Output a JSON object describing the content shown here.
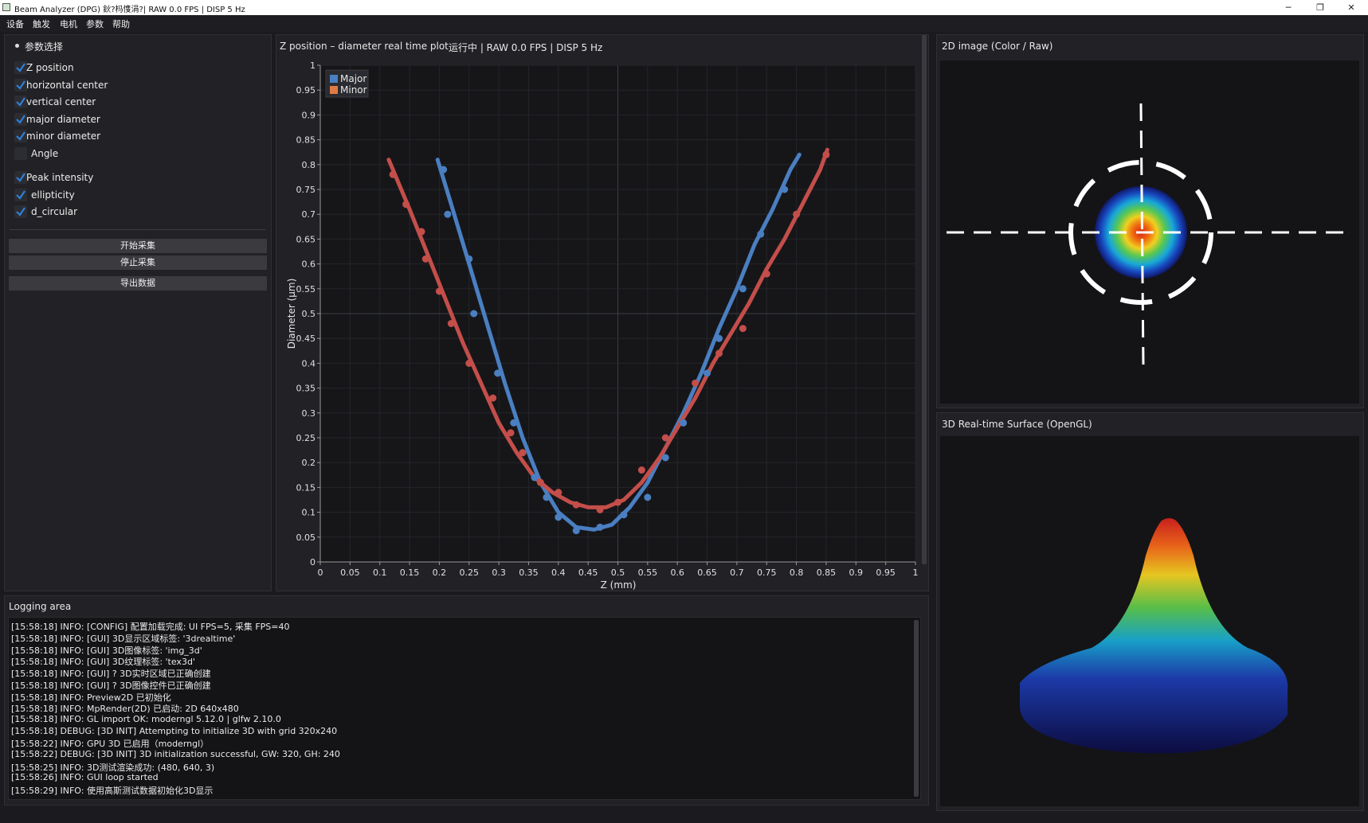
{
  "window": {
    "title": "Beam Analyzer (DPG) 鈥?杩愯涓?| RAW 0.0 FPS | DISP 5 Hz",
    "minimize": "─",
    "restore": "❐",
    "close": "✕"
  },
  "menu": [
    "设备",
    "触发",
    "电机",
    "参数",
    "帮助"
  ],
  "params": {
    "header": "参数选择",
    "items": [
      {
        "label": "Z position",
        "checked": true
      },
      {
        "label": "horizontal center",
        "checked": true
      },
      {
        "label": "vertical center",
        "checked": true
      },
      {
        "label": "major diameter",
        "checked": true
      },
      {
        "label": "minor diameter",
        "checked": true
      },
      {
        "label": "Angle",
        "checked": false
      },
      {
        "label": "Peak intensity",
        "checked": true
      },
      {
        "label": "ellipticity",
        "checked": true
      },
      {
        "label": "d_circular",
        "checked": true
      }
    ],
    "start_label": "开始采集",
    "stop_label": "停止采集",
    "export_label": "导出数据"
  },
  "plot": {
    "title": "Z position – diameter real time plot",
    "status": "运行中 | RAW 0.0 FPS | DISP 5 Hz"
  },
  "chart_data": {
    "type": "line",
    "title": "",
    "xlabel": "Z (mm)",
    "ylabel": "Diameter (μm)",
    "xlim": [
      0,
      1
    ],
    "ylim": [
      0,
      1
    ],
    "xticks": [
      "0",
      "0.05",
      "0.1",
      "0.15",
      "0.2",
      "0.25",
      "0.3",
      "0.35",
      "0.4",
      "0.45",
      "0.5",
      "0.55",
      "0.6",
      "0.65",
      "0.7",
      "0.75",
      "0.8",
      "0.85",
      "0.9",
      "0.95",
      "1"
    ],
    "yticks": [
      "0",
      "0.05",
      "0.1",
      "0.15",
      "0.2",
      "0.25",
      "0.3",
      "0.35",
      "0.4",
      "0.45",
      "0.5",
      "0.55",
      "0.6",
      "0.65",
      "0.7",
      "0.75",
      "0.8",
      "0.85",
      "0.9",
      "0.95",
      "1"
    ],
    "grid": true,
    "legend_position": "top-left",
    "series": [
      {
        "name": "Major",
        "color": "#4a7fc1",
        "points": [
          [
            0.207,
            0.79
          ],
          [
            0.214,
            0.7
          ],
          [
            0.25,
            0.61
          ],
          [
            0.258,
            0.5
          ],
          [
            0.298,
            0.38
          ],
          [
            0.325,
            0.28
          ],
          [
            0.34,
            0.22
          ],
          [
            0.36,
            0.17
          ],
          [
            0.38,
            0.13
          ],
          [
            0.4,
            0.09
          ],
          [
            0.43,
            0.063
          ],
          [
            0.47,
            0.07
          ],
          [
            0.51,
            0.095
          ],
          [
            0.55,
            0.13
          ],
          [
            0.58,
            0.21
          ],
          [
            0.61,
            0.28
          ],
          [
            0.65,
            0.38
          ],
          [
            0.67,
            0.45
          ],
          [
            0.71,
            0.55
          ],
          [
            0.74,
            0.66
          ],
          [
            0.78,
            0.75
          ]
        ],
        "curve": [
          [
            0.197,
            0.81
          ],
          [
            0.22,
            0.72
          ],
          [
            0.25,
            0.6
          ],
          [
            0.28,
            0.48
          ],
          [
            0.31,
            0.36
          ],
          [
            0.34,
            0.25
          ],
          [
            0.37,
            0.16
          ],
          [
            0.4,
            0.1
          ],
          [
            0.43,
            0.07
          ],
          [
            0.46,
            0.065
          ],
          [
            0.49,
            0.075
          ],
          [
            0.52,
            0.11
          ],
          [
            0.55,
            0.16
          ],
          [
            0.58,
            0.23
          ],
          [
            0.61,
            0.3
          ],
          [
            0.64,
            0.38
          ],
          [
            0.67,
            0.47
          ],
          [
            0.7,
            0.55
          ],
          [
            0.73,
            0.64
          ],
          [
            0.76,
            0.71
          ],
          [
            0.79,
            0.79
          ],
          [
            0.805,
            0.82
          ]
        ]
      },
      {
        "name": "Minor",
        "color": "#c44e4a",
        "points": [
          [
            0.122,
            0.78
          ],
          [
            0.144,
            0.72
          ],
          [
            0.17,
            0.665
          ],
          [
            0.177,
            0.61
          ],
          [
            0.2,
            0.545
          ],
          [
            0.22,
            0.48
          ],
          [
            0.25,
            0.4
          ],
          [
            0.29,
            0.33
          ],
          [
            0.32,
            0.26
          ],
          [
            0.34,
            0.22
          ],
          [
            0.37,
            0.16
          ],
          [
            0.4,
            0.14
          ],
          [
            0.43,
            0.115
          ],
          [
            0.47,
            0.105
          ],
          [
            0.5,
            0.12
          ],
          [
            0.54,
            0.185
          ],
          [
            0.58,
            0.25
          ],
          [
            0.63,
            0.36
          ],
          [
            0.67,
            0.42
          ],
          [
            0.71,
            0.47
          ],
          [
            0.75,
            0.58
          ],
          [
            0.8,
            0.7
          ],
          [
            0.85,
            0.82
          ]
        ],
        "curve": [
          [
            0.115,
            0.81
          ],
          [
            0.15,
            0.71
          ],
          [
            0.18,
            0.62
          ],
          [
            0.21,
            0.53
          ],
          [
            0.24,
            0.44
          ],
          [
            0.27,
            0.36
          ],
          [
            0.3,
            0.28
          ],
          [
            0.33,
            0.22
          ],
          [
            0.36,
            0.17
          ],
          [
            0.39,
            0.14
          ],
          [
            0.42,
            0.12
          ],
          [
            0.45,
            0.11
          ],
          [
            0.48,
            0.11
          ],
          [
            0.51,
            0.125
          ],
          [
            0.54,
            0.16
          ],
          [
            0.57,
            0.21
          ],
          [
            0.6,
            0.27
          ],
          [
            0.63,
            0.33
          ],
          [
            0.66,
            0.4
          ],
          [
            0.69,
            0.46
          ],
          [
            0.72,
            0.52
          ],
          [
            0.75,
            0.59
          ],
          [
            0.78,
            0.65
          ],
          [
            0.81,
            0.72
          ],
          [
            0.84,
            0.79
          ],
          [
            0.852,
            0.83
          ]
        ]
      }
    ]
  },
  "image2d": {
    "title": "2D image (Color / Raw)"
  },
  "surface3d": {
    "title": "3D Real-time Surface (OpenGL)"
  },
  "logging": {
    "title": "Logging area",
    "lines": [
      "[15:58:18] INFO: [CONFIG] 配置加载完成: UI FPS=5, 采集 FPS=40",
      "[15:58:18] INFO: [GUI] 3D显示区域标签: '3drealtime'",
      "[15:58:18] INFO: [GUI] 3D图像标签: 'img_3d'",
      "[15:58:18] INFO: [GUI] 3D纹理标签: 'tex3d'",
      "[15:58:18] INFO: [GUI] ? 3D实时区域已正确创建",
      "[15:58:18] INFO: [GUI] ? 3D图像控件已正确创建",
      "[15:58:18] INFO: Preview2D 已初始化",
      "[15:58:18] INFO: MpRender(2D) 已启动: 2D 640x480",
      "[15:58:18] INFO: GL import OK: moderngl 5.12.0 | glfw 2.10.0",
      "[15:58:18] DEBUG: [3D INIT] Attempting to initialize 3D with grid 320x240",
      "[15:58:22] INFO: GPU 3D 已启用（moderngl）",
      "[15:58:22] DEBUG: [3D INIT] 3D initialization successful, GW: 320, GH: 240",
      "[15:58:25] INFO: 3D测试渲染成功: (480, 640, 3)",
      "[15:58:26] INFO: GUI loop started",
      "[15:58:29] INFO: 使用高斯测试数据初始化3D显示"
    ]
  }
}
